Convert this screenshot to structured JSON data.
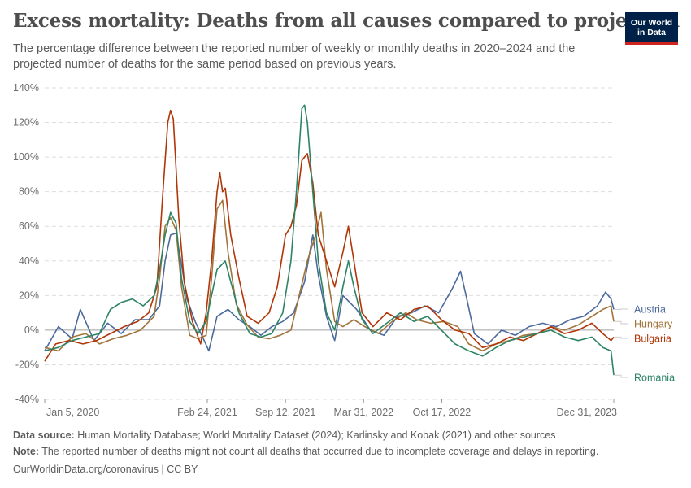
{
  "header": {
    "title": "Excess mortality: Deaths from all causes compared to projection",
    "subtitle": "The percentage difference between the reported number of weekly or monthly deaths in 2020–2024 and the projected number of deaths for the same period based on previous years.",
    "logo_line1": "Our World",
    "logo_line2": "in Data"
  },
  "footer": {
    "source_label": "Data source:",
    "source_text": "Human Mortality Database; World Mortality Dataset (2024); Karlinsky and Kobak (2021) and other sources",
    "note_label": "Note:",
    "note_text": "The reported number of deaths might not count all deaths that occurred due to incomplete coverage and delays in reporting.",
    "credit": "OurWorldinData.org/coronavirus | CC BY"
  },
  "colors": {
    "Austria": "#4c6a9c",
    "Hungary": "#a2743b",
    "Bulgaria": "#b13507",
    "Romania": "#2c8465"
  },
  "chart_data": {
    "type": "line",
    "x_start": "2020-01-05",
    "x_end": "2023-12-31",
    "x_ticks": [
      {
        "date": "2020-01-05",
        "label": "Jan 5, 2020"
      },
      {
        "date": "2021-02-24",
        "label": "Feb 24, 2021"
      },
      {
        "date": "2021-09-12",
        "label": "Sep 12, 2021"
      },
      {
        "date": "2022-03-31",
        "label": "Mar 31, 2022"
      },
      {
        "date": "2022-10-17",
        "label": "Oct 17, 2022"
      },
      {
        "date": "2023-12-31",
        "label": "Dec 31, 2023"
      }
    ],
    "ylim": [
      -40,
      140
    ],
    "y_ticks": [
      -40,
      -20,
      0,
      20,
      40,
      60,
      80,
      100,
      120,
      140
    ],
    "y_unit": "%",
    "grid": true,
    "legend": "right-labels",
    "series": [
      {
        "name": "Austria",
        "points": [
          [
            "2020-01-05",
            -12
          ],
          [
            "2020-02-09",
            2
          ],
          [
            "2020-03-15",
            -5
          ],
          [
            "2020-04-05",
            12
          ],
          [
            "2020-05-10",
            -6
          ],
          [
            "2020-06-14",
            4
          ],
          [
            "2020-07-19",
            -2
          ],
          [
            "2020-08-23",
            6
          ],
          [
            "2020-09-27",
            6
          ],
          [
            "2020-10-25",
            14
          ],
          [
            "2020-11-08",
            40
          ],
          [
            "2020-11-22",
            55
          ],
          [
            "2020-12-06",
            56
          ],
          [
            "2020-12-20",
            38
          ],
          [
            "2021-01-03",
            18
          ],
          [
            "2021-01-24",
            5
          ],
          [
            "2021-02-14",
            -5
          ],
          [
            "2021-02-28",
            -12
          ],
          [
            "2021-03-21",
            8
          ],
          [
            "2021-04-18",
            12
          ],
          [
            "2021-05-16",
            6
          ],
          [
            "2021-06-13",
            2
          ],
          [
            "2021-07-11",
            -3
          ],
          [
            "2021-08-08",
            2
          ],
          [
            "2021-09-05",
            5
          ],
          [
            "2021-10-03",
            10
          ],
          [
            "2021-10-31",
            28
          ],
          [
            "2021-11-21",
            55
          ],
          [
            "2021-12-05",
            32
          ],
          [
            "2021-12-26",
            8
          ],
          [
            "2022-01-16",
            -6
          ],
          [
            "2022-02-06",
            20
          ],
          [
            "2022-03-13",
            12
          ],
          [
            "2022-04-17",
            0
          ],
          [
            "2022-05-22",
            -3
          ],
          [
            "2022-06-26",
            8
          ],
          [
            "2022-07-31",
            10
          ],
          [
            "2022-09-04",
            14
          ],
          [
            "2022-10-09",
            10
          ],
          [
            "2022-11-13",
            24
          ],
          [
            "2022-12-04",
            34
          ],
          [
            "2022-12-18",
            20
          ],
          [
            "2023-01-08",
            -2
          ],
          [
            "2023-02-12",
            -8
          ],
          [
            "2023-03-19",
            0
          ],
          [
            "2023-04-23",
            -3
          ],
          [
            "2023-05-28",
            2
          ],
          [
            "2023-07-02",
            4
          ],
          [
            "2023-08-06",
            2
          ],
          [
            "2023-09-10",
            6
          ],
          [
            "2023-10-15",
            8
          ],
          [
            "2023-11-19",
            14
          ],
          [
            "2023-12-10",
            22
          ],
          [
            "2023-12-24",
            18
          ],
          [
            "2023-12-31",
            12
          ]
        ]
      },
      {
        "name": "Hungary",
        "points": [
          [
            "2020-01-05",
            -10
          ],
          [
            "2020-02-09",
            -12
          ],
          [
            "2020-03-15",
            -4
          ],
          [
            "2020-04-19",
            -2
          ],
          [
            "2020-05-24",
            -8
          ],
          [
            "2020-06-28",
            -5
          ],
          [
            "2020-08-02",
            -3
          ],
          [
            "2020-09-06",
            0
          ],
          [
            "2020-10-11",
            8
          ],
          [
            "2020-10-25",
            30
          ],
          [
            "2020-11-08",
            60
          ],
          [
            "2020-11-22",
            65
          ],
          [
            "2020-12-06",
            58
          ],
          [
            "2020-12-20",
            25
          ],
          [
            "2021-01-10",
            -3
          ],
          [
            "2021-01-31",
            -5
          ],
          [
            "2021-02-21",
            -3
          ],
          [
            "2021-03-07",
            30
          ],
          [
            "2021-03-21",
            70
          ],
          [
            "2021-04-04",
            75
          ],
          [
            "2021-04-18",
            45
          ],
          [
            "2021-05-09",
            15
          ],
          [
            "2021-06-06",
            3
          ],
          [
            "2021-07-04",
            -4
          ],
          [
            "2021-08-01",
            -5
          ],
          [
            "2021-08-29",
            -3
          ],
          [
            "2021-09-26",
            0
          ],
          [
            "2021-10-17",
            20
          ],
          [
            "2021-11-07",
            40
          ],
          [
            "2021-11-28",
            55
          ],
          [
            "2021-12-12",
            68
          ],
          [
            "2021-12-26",
            35
          ],
          [
            "2022-01-16",
            5
          ],
          [
            "2022-02-06",
            2
          ],
          [
            "2022-03-06",
            6
          ],
          [
            "2022-04-03",
            2
          ],
          [
            "2022-05-08",
            -2
          ],
          [
            "2022-06-12",
            5
          ],
          [
            "2022-07-17",
            10
          ],
          [
            "2022-08-14",
            6
          ],
          [
            "2022-09-18",
            4
          ],
          [
            "2022-10-23",
            5
          ],
          [
            "2022-11-27",
            2
          ],
          [
            "2022-12-25",
            -8
          ],
          [
            "2023-01-29",
            -12
          ],
          [
            "2023-03-05",
            -8
          ],
          [
            "2023-04-09",
            -6
          ],
          [
            "2023-05-14",
            -3
          ],
          [
            "2023-06-18",
            -2
          ],
          [
            "2023-07-23",
            2
          ],
          [
            "2023-08-27",
            0
          ],
          [
            "2023-10-01",
            3
          ],
          [
            "2023-11-05",
            8
          ],
          [
            "2023-12-03",
            12
          ],
          [
            "2023-12-24",
            14
          ],
          [
            "2023-12-31",
            5
          ]
        ]
      },
      {
        "name": "Bulgaria",
        "points": [
          [
            "2020-01-05",
            -18
          ],
          [
            "2020-02-02",
            -8
          ],
          [
            "2020-03-08",
            -6
          ],
          [
            "2020-04-12",
            -8
          ],
          [
            "2020-05-17",
            -6
          ],
          [
            "2020-06-21",
            -2
          ],
          [
            "2020-07-26",
            2
          ],
          [
            "2020-08-30",
            5
          ],
          [
            "2020-09-27",
            10
          ],
          [
            "2020-10-18",
            25
          ],
          [
            "2020-11-01",
            75
          ],
          [
            "2020-11-15",
            120
          ],
          [
            "2020-11-22",
            127
          ],
          [
            "2020-11-29",
            122
          ],
          [
            "2020-12-13",
            65
          ],
          [
            "2020-12-27",
            28
          ],
          [
            "2021-01-17",
            5
          ],
          [
            "2021-02-07",
            -8
          ],
          [
            "2021-02-21",
            10
          ],
          [
            "2021-03-07",
            40
          ],
          [
            "2021-03-21",
            80
          ],
          [
            "2021-03-28",
            91
          ],
          [
            "2021-04-04",
            80
          ],
          [
            "2021-04-11",
            82
          ],
          [
            "2021-04-25",
            55
          ],
          [
            "2021-05-16",
            30
          ],
          [
            "2021-06-06",
            8
          ],
          [
            "2021-07-04",
            4
          ],
          [
            "2021-08-01",
            10
          ],
          [
            "2021-08-22",
            25
          ],
          [
            "2021-09-12",
            55
          ],
          [
            "2021-09-26",
            60
          ],
          [
            "2021-10-10",
            72
          ],
          [
            "2021-10-24",
            98
          ],
          [
            "2021-11-07",
            102
          ],
          [
            "2021-11-21",
            85
          ],
          [
            "2021-12-05",
            55
          ],
          [
            "2021-12-26",
            40
          ],
          [
            "2022-01-16",
            25
          ],
          [
            "2022-02-06",
            45
          ],
          [
            "2022-02-20",
            60
          ],
          [
            "2022-03-06",
            40
          ],
          [
            "2022-03-27",
            10
          ],
          [
            "2022-04-24",
            2
          ],
          [
            "2022-05-29",
            10
          ],
          [
            "2022-07-03",
            6
          ],
          [
            "2022-08-07",
            12
          ],
          [
            "2022-09-11",
            14
          ],
          [
            "2022-10-16",
            6
          ],
          [
            "2022-11-20",
            0
          ],
          [
            "2022-12-25",
            -2
          ],
          [
            "2023-01-29",
            -10
          ],
          [
            "2023-03-05",
            -8
          ],
          [
            "2023-04-09",
            -4
          ],
          [
            "2023-05-14",
            -6
          ],
          [
            "2023-06-18",
            -2
          ],
          [
            "2023-07-23",
            2
          ],
          [
            "2023-08-27",
            -2
          ],
          [
            "2023-10-01",
            0
          ],
          [
            "2023-11-05",
            4
          ],
          [
            "2023-12-03",
            -2
          ],
          [
            "2023-12-24",
            -6
          ],
          [
            "2023-12-31",
            -4
          ]
        ]
      },
      {
        "name": "Romania",
        "points": [
          [
            "2020-01-05",
            -12
          ],
          [
            "2020-02-09",
            -10
          ],
          [
            "2020-03-15",
            -6
          ],
          [
            "2020-04-19",
            -4
          ],
          [
            "2020-05-24",
            -2
          ],
          [
            "2020-06-21",
            12
          ],
          [
            "2020-07-19",
            16
          ],
          [
            "2020-08-16",
            18
          ],
          [
            "2020-09-13",
            14
          ],
          [
            "2020-10-11",
            20
          ],
          [
            "2020-10-25",
            35
          ],
          [
            "2020-11-08",
            55
          ],
          [
            "2020-11-22",
            68
          ],
          [
            "2020-12-06",
            62
          ],
          [
            "2020-12-20",
            30
          ],
          [
            "2021-01-10",
            5
          ],
          [
            "2021-01-31",
            -2
          ],
          [
            "2021-02-21",
            5
          ],
          [
            "2021-03-07",
            20
          ],
          [
            "2021-03-21",
            35
          ],
          [
            "2021-04-11",
            40
          ],
          [
            "2021-04-25",
            28
          ],
          [
            "2021-05-16",
            10
          ],
          [
            "2021-06-13",
            -2
          ],
          [
            "2021-07-11",
            -4
          ],
          [
            "2021-08-08",
            -2
          ],
          [
            "2021-09-05",
            10
          ],
          [
            "2021-09-26",
            40
          ],
          [
            "2021-10-10",
            80
          ],
          [
            "2021-10-24",
            128
          ],
          [
            "2021-10-31",
            130
          ],
          [
            "2021-11-07",
            120
          ],
          [
            "2021-11-21",
            80
          ],
          [
            "2021-12-05",
            40
          ],
          [
            "2021-12-26",
            10
          ],
          [
            "2022-01-16",
            0
          ],
          [
            "2022-02-06",
            25
          ],
          [
            "2022-02-20",
            40
          ],
          [
            "2022-03-06",
            25
          ],
          [
            "2022-03-27",
            6
          ],
          [
            "2022-04-24",
            -2
          ],
          [
            "2022-05-29",
            4
          ],
          [
            "2022-07-03",
            10
          ],
          [
            "2022-08-07",
            5
          ],
          [
            "2022-09-11",
            8
          ],
          [
            "2022-10-16",
            0
          ],
          [
            "2022-11-20",
            -8
          ],
          [
            "2022-12-25",
            -12
          ],
          [
            "2023-01-29",
            -15
          ],
          [
            "2023-03-05",
            -10
          ],
          [
            "2023-04-09",
            -6
          ],
          [
            "2023-05-14",
            -4
          ],
          [
            "2023-06-18",
            -2
          ],
          [
            "2023-07-23",
            0
          ],
          [
            "2023-08-27",
            -4
          ],
          [
            "2023-10-01",
            -6
          ],
          [
            "2023-11-05",
            -4
          ],
          [
            "2023-12-03",
            -10
          ],
          [
            "2023-12-24",
            -12
          ],
          [
            "2023-12-31",
            -26
          ]
        ]
      }
    ]
  }
}
